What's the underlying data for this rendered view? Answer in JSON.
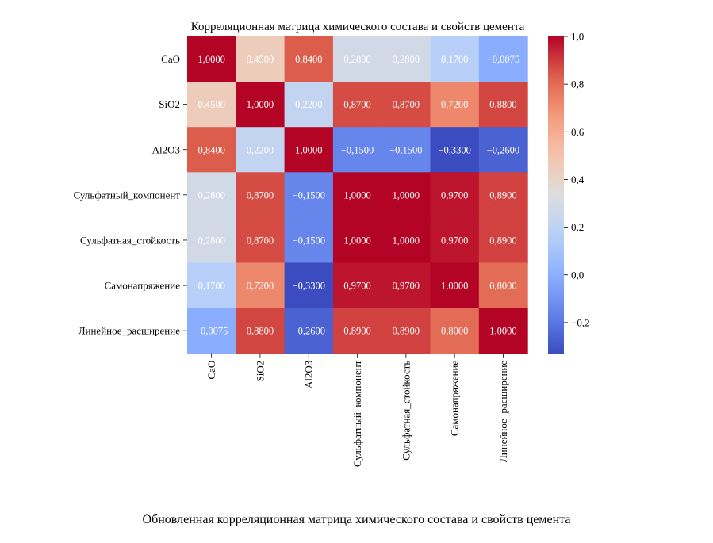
{
  "chart_data": {
    "type": "heatmap",
    "title": "Корреляционная матрица химического состава и свойств цемента",
    "row_labels": [
      "CaO",
      "SiO2",
      "Al2O3",
      "Сульфатный_компонент",
      "Сульфатная_стойкость",
      "Самонапряжение",
      "Линейное_расширение"
    ],
    "col_labels": [
      "CaO",
      "SiO2",
      "Al2O3",
      "Сульфатный_компонент",
      "Сульфатная_стойкость",
      "Самонапряжение",
      "Линейное_расширение"
    ],
    "values": [
      [
        1.0,
        0.45,
        0.84,
        0.28,
        0.28,
        0.17,
        -0.0075
      ],
      [
        0.45,
        1.0,
        0.22,
        0.87,
        0.87,
        0.72,
        0.88
      ],
      [
        0.84,
        0.22,
        1.0,
        -0.15,
        -0.15,
        -0.33,
        -0.26
      ],
      [
        0.28,
        0.87,
        -0.15,
        1.0,
        1.0,
        0.97,
        0.89
      ],
      [
        0.28,
        0.87,
        -0.15,
        1.0,
        1.0,
        0.97,
        0.89
      ],
      [
        0.17,
        0.72,
        -0.33,
        0.97,
        0.97,
        1.0,
        0.8
      ],
      [
        -0.0075,
        0.88,
        -0.26,
        0.89,
        0.89,
        0.8,
        1.0
      ]
    ],
    "cell_labels": [
      [
        "1,0000",
        "0,4500",
        "0,8400",
        "0,2800",
        "0,2800",
        "0,1700",
        "−0,0075"
      ],
      [
        "0,4500",
        "1,0000",
        "0,2200",
        "0,8700",
        "0,8700",
        "0,7200",
        "0,8800"
      ],
      [
        "0,8400",
        "0,2200",
        "1,0000",
        "−0,1500",
        "−0,1500",
        "−0,3300",
        "−0,2600"
      ],
      [
        "0,2800",
        "0,8700",
        "−0,1500",
        "1,0000",
        "1,0000",
        "0,9700",
        "0,8900"
      ],
      [
        "0,2800",
        "0,8700",
        "−0,1500",
        "1,0000",
        "1,0000",
        "0,9700",
        "0,8900"
      ],
      [
        "0,1700",
        "0,7200",
        "−0,3300",
        "0,9700",
        "0,9700",
        "1,0000",
        "0,8000"
      ],
      [
        "−0,0075",
        "0,8800",
        "−0,2600",
        "0,8900",
        "0,8900",
        "0,8000",
        "1,0000"
      ]
    ],
    "colorbar": {
      "range": [
        -0.33,
        1.0
      ],
      "ticks": [
        1.0,
        0.8,
        0.6,
        0.4,
        0.2,
        0.0,
        -0.2
      ],
      "tick_labels": [
        "1,0",
        "0,8",
        "0,6",
        "0,4",
        "0,2",
        "0,0",
        "−0,2"
      ],
      "colormap": "coolwarm"
    },
    "legend_position": "right",
    "grid": false
  },
  "caption": "Обновленная корреляционная матрица химического состава и свойств цемента"
}
